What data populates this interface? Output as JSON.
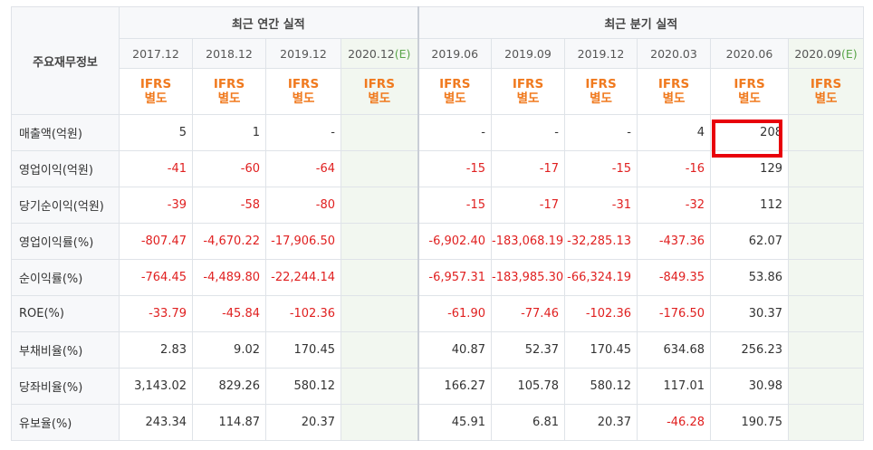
{
  "table": {
    "corner_label": "주요재무정보",
    "annual_group_label": "최근 연간 실적",
    "quarter_group_label": "최근 분기 실적",
    "annual_periods": [
      {
        "label": "2017.12",
        "est": ""
      },
      {
        "label": "2018.12",
        "est": ""
      },
      {
        "label": "2019.12",
        "est": ""
      },
      {
        "label": "2020.12",
        "est": "(E)"
      }
    ],
    "quarter_periods": [
      {
        "label": "2019.06",
        "est": ""
      },
      {
        "label": "2019.09",
        "est": ""
      },
      {
        "label": "2019.12",
        "est": ""
      },
      {
        "label": "2020.03",
        "est": ""
      },
      {
        "label": "2020.06",
        "est": ""
      },
      {
        "label": "2020.09",
        "est": "(E)"
      }
    ],
    "ifrs_line1": "IFRS",
    "ifrs_line2": "별도",
    "rows": [
      {
        "label": "매출액(억원)",
        "values": [
          "5",
          "1",
          "-",
          "",
          "-",
          "-",
          "-",
          "4",
          "208",
          ""
        ]
      },
      {
        "label": "영업이익(억원)",
        "values": [
          "-41",
          "-60",
          "-64",
          "",
          "-15",
          "-17",
          "-15",
          "-16",
          "129",
          ""
        ]
      },
      {
        "label": "당기순이익(억원)",
        "values": [
          "-39",
          "-58",
          "-80",
          "",
          "-15",
          "-17",
          "-31",
          "-32",
          "112",
          ""
        ]
      },
      {
        "label": "영업이익률(%)",
        "values": [
          "-807.47",
          "-4,670.22",
          "-17,906.50",
          "",
          "-6,902.40",
          "-183,068.19",
          "-32,285.13",
          "-437.36",
          "62.07",
          ""
        ]
      },
      {
        "label": "순이익률(%)",
        "values": [
          "-764.45",
          "-4,489.80",
          "-22,244.14",
          "",
          "-6,957.31",
          "-183,985.30",
          "-66,324.19",
          "-849.35",
          "53.86",
          ""
        ]
      },
      {
        "label": "ROE(%)",
        "values": [
          "-33.79",
          "-45.84",
          "-102.36",
          "",
          "-61.90",
          "-77.46",
          "-102.36",
          "-176.50",
          "30.37",
          ""
        ]
      },
      {
        "label": "부채비율(%)",
        "values": [
          "2.83",
          "9.02",
          "170.45",
          "",
          "40.87",
          "52.37",
          "170.45",
          "634.68",
          "256.23",
          ""
        ]
      },
      {
        "label": "당좌비율(%)",
        "values": [
          "3,143.02",
          "829.26",
          "580.12",
          "",
          "166.27",
          "105.78",
          "580.12",
          "117.01",
          "30.98",
          ""
        ]
      },
      {
        "label": "유보율(%)",
        "values": [
          "243.34",
          "114.87",
          "20.37",
          "",
          "45.91",
          "6.81",
          "20.37",
          "-46.28",
          "190.75",
          ""
        ]
      }
    ]
  },
  "colors": {
    "negative": "#e02020",
    "ifrs": "#f07a1f",
    "estimate_bg": "#f2f7f0",
    "highlight": "#e8000b"
  }
}
